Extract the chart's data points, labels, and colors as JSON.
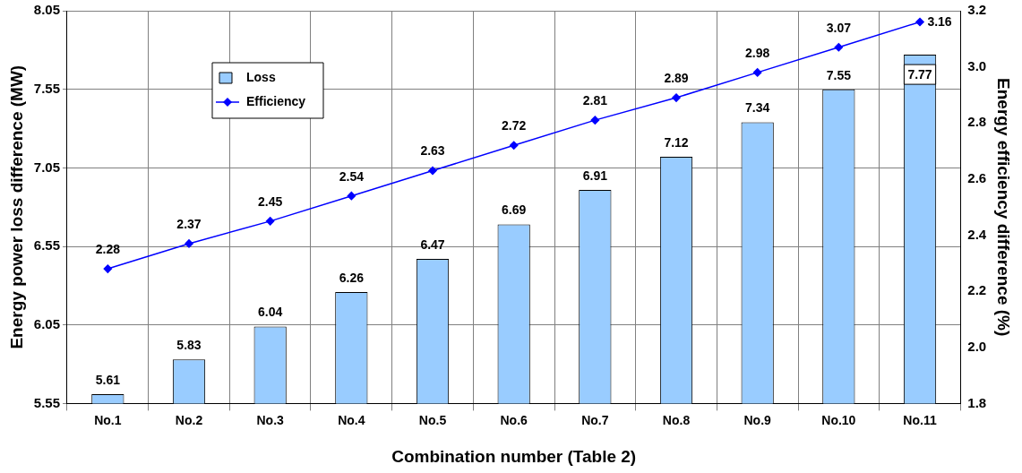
{
  "chart_data": {
    "type": "bar",
    "xlabel": "Combination number (Table 2)",
    "ylabel": "Energy power loss difference (MW)",
    "y2label": "Energy efficiency difference (%)",
    "categories": [
      "No.1",
      "No.2",
      "No.3",
      "No.4",
      "No.5",
      "No.6",
      "No.7",
      "No.8",
      "No.9",
      "No.10",
      "No.11"
    ],
    "series": [
      {
        "name": "Loss",
        "color": "#99ccff",
        "values": [
          5.61,
          5.83,
          6.04,
          6.26,
          6.47,
          6.69,
          6.91,
          7.12,
          7.34,
          7.55,
          7.77
        ]
      },
      {
        "name": "Efficiency",
        "type": "line",
        "axis": "y2",
        "color": "#0000ff",
        "values": [
          2.28,
          2.37,
          2.45,
          2.54,
          2.63,
          2.72,
          2.81,
          2.89,
          2.98,
          3.07,
          3.16
        ]
      }
    ],
    "ylim": [
      5.55,
      8.05
    ],
    "yticks": [
      5.55,
      6.05,
      6.55,
      7.05,
      7.55,
      8.05
    ],
    "y2lim": [
      1.8,
      3.2
    ],
    "y2ticks": [
      1.8,
      {
        "value": 2,
        "label": "2.0"
      },
      2.2,
      2.4,
      2.6,
      2.8,
      {
        "value": 3,
        "label": "3.0"
      },
      3.2
    ],
    "grid": true,
    "legend": "top left",
    "marker": "diamond",
    "line_style": "solid",
    "data_labels": true
  }
}
